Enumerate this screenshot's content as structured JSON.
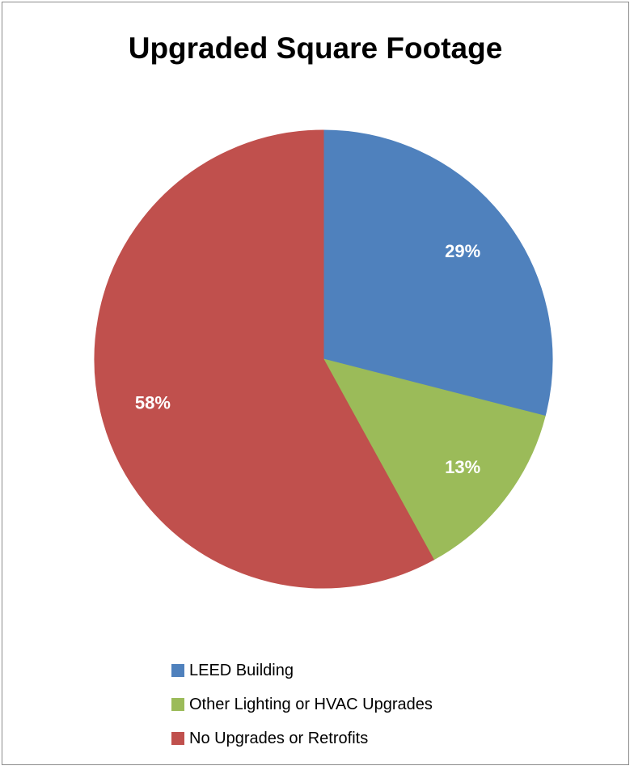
{
  "chart_data": {
    "type": "pie",
    "title": "Upgraded Square Footage",
    "slices": [
      {
        "label": "LEED Building",
        "value": 29,
        "display": "29%",
        "color": "#4F81BD"
      },
      {
        "label": "Other Lighting or HVAC Upgrades",
        "value": 13,
        "display": "13%",
        "color": "#9BBB59"
      },
      {
        "label": "No Upgrades or Retrofits",
        "value": 58,
        "display": "58%",
        "color": "#C0504D"
      }
    ],
    "start_angle_deg": 0,
    "direction": "clockwise",
    "legend_position": "bottom"
  }
}
